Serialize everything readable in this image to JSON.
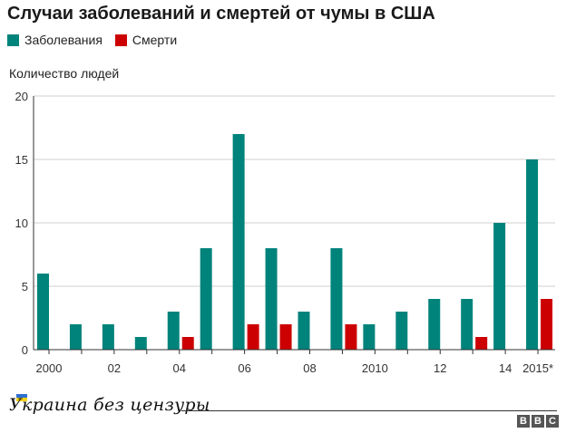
{
  "chart_data": {
    "type": "bar",
    "title": "Случаи заболеваний и смертей от чумы в США",
    "ylabel": "Количество людей",
    "xlabel": "",
    "ylim": [
      0,
      20
    ],
    "yticks": [
      0,
      5,
      10,
      15,
      20
    ],
    "grid": true,
    "legend_position": "top-left",
    "categories": [
      "2000",
      "2001",
      "2002",
      "2003",
      "2004",
      "2005",
      "2006",
      "2007",
      "2008",
      "2009",
      "2010",
      "2011",
      "2012",
      "2013",
      "2014",
      "2015*"
    ],
    "tick_labels": [
      "2000",
      "",
      "02",
      "",
      "04",
      "",
      "06",
      "",
      "08",
      "",
      "2010",
      "",
      "12",
      "",
      "14",
      "2015*"
    ],
    "series": [
      {
        "name": "Заболевания",
        "color": "#00837b",
        "values": [
          6,
          2,
          2,
          1,
          3,
          8,
          17,
          8,
          3,
          8,
          2,
          3,
          4,
          4,
          10,
          15
        ]
      },
      {
        "name": "Смерти",
        "color": "#cc0000",
        "values": [
          0,
          0,
          0,
          0,
          1,
          0,
          2,
          2,
          0,
          2,
          0,
          0,
          0,
          1,
          0,
          4
        ]
      }
    ]
  },
  "footer": {
    "watermark": "Украина без цензуры",
    "bbc": [
      "B",
      "B",
      "C"
    ]
  }
}
